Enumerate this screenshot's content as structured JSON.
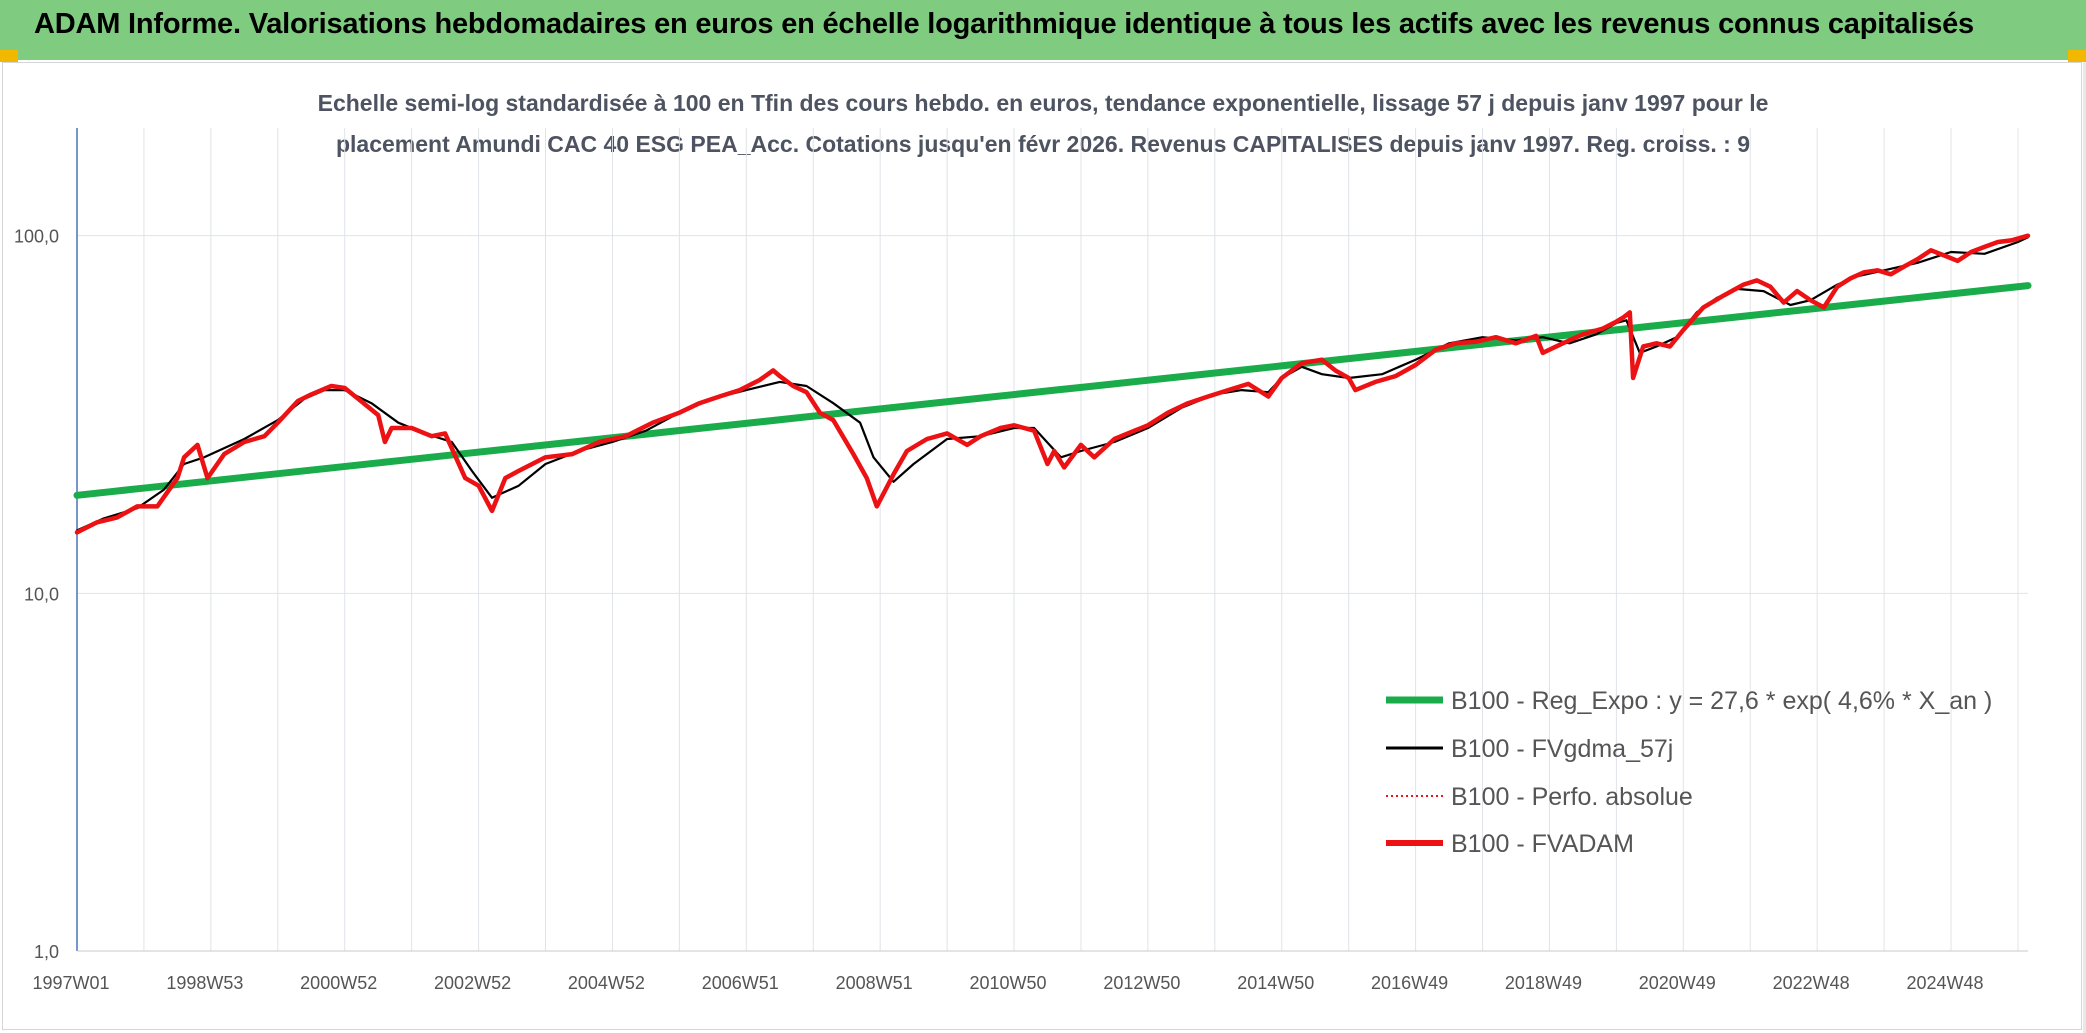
{
  "banner": {
    "title": "ADAM Informe. Valorisations hebdomadaires en euros en échelle logarithmique identique à tous les actifs avec les revenus connus capitalisés"
  },
  "colors": {
    "banner": "#7fcb7f",
    "regression": "#1aab4a",
    "smoothed": "#000000",
    "perf": "#e8141c",
    "fvadam": "#ee1111"
  },
  "chart_data": {
    "type": "line",
    "title_lines": [
      "Echelle semi-log standardisée à 100 en Tfin des cours hebdo. en euros, tendance exponentielle, lissage 57 j depuis janv 1997 pour le",
      "placement Amundi CAC 40 ESG PEA_Acc. Cotations jusqu'en févr 2026. Revenus CAPITALISES depuis janv 1997. Reg. croiss. : 9"
    ],
    "y_scale": "log",
    "ylim": [
      1,
      200
    ],
    "y_ticks": [
      {
        "value": 100,
        "label": "100,0"
      },
      {
        "value": 10,
        "label": "10,0"
      },
      {
        "value": 1,
        "label": "1,0"
      }
    ],
    "x_range": [
      1997.0,
      2026.15
    ],
    "x_ticks": [
      {
        "x": 1997.0,
        "label": "1997W01"
      },
      {
        "x": 1999.0,
        "label": "1998W53"
      },
      {
        "x": 2001.0,
        "label": "2000W52"
      },
      {
        "x": 2003.0,
        "label": "2002W52"
      },
      {
        "x": 2005.0,
        "label": "2004W52"
      },
      {
        "x": 2007.0,
        "label": "2006W51"
      },
      {
        "x": 2009.0,
        "label": "2008W51"
      },
      {
        "x": 2011.0,
        "label": "2010W50"
      },
      {
        "x": 2013.0,
        "label": "2012W50"
      },
      {
        "x": 2015.0,
        "label": "2014W50"
      },
      {
        "x": 2017.0,
        "label": "2016W49"
      },
      {
        "x": 2019.0,
        "label": "2018W49"
      },
      {
        "x": 2021.0,
        "label": "2020W49"
      },
      {
        "x": 2023.0,
        "label": "2022W48"
      },
      {
        "x": 2025.0,
        "label": "2024W48"
      }
    ],
    "gridlines": "vertical at each year, horizontal at each decade",
    "legend_position": "bottom-right inside plot",
    "series": [
      {
        "name": "B100 - Reg_Expo : y = 27,6 * exp( 4,6% *  X_an )",
        "style": "thick green line",
        "x": [
          1997.0,
          2026.15
        ],
        "y": [
          18.8,
          72.5
        ]
      },
      {
        "name": "B100 - FVgdma_57j",
        "style": "thin black line",
        "x": [
          1997.0,
          1997.4,
          1997.9,
          1998.3,
          1998.6,
          1998.9,
          1999.5,
          2000.0,
          2000.4,
          2000.7,
          2001.0,
          2001.4,
          2001.8,
          2002.2,
          2002.6,
          2002.9,
          2003.2,
          2003.6,
          2004.0,
          2004.5,
          2005.0,
          2005.5,
          2006.0,
          2006.5,
          2007.0,
          2007.5,
          2007.9,
          2008.3,
          2008.7,
          2008.9,
          2009.2,
          2009.5,
          2010.0,
          2010.5,
          2011.0,
          2011.3,
          2011.7,
          2012.0,
          2012.5,
          2013.0,
          2013.5,
          2014.0,
          2014.4,
          2014.8,
          2015.0,
          2015.3,
          2015.6,
          2016.0,
          2016.5,
          2017.0,
          2017.5,
          2018.0,
          2018.5,
          2018.9,
          2019.3,
          2019.7,
          2020.0,
          2020.15,
          2020.35,
          2020.6,
          2020.9,
          2021.2,
          2021.5,
          2021.8,
          2022.2,
          2022.6,
          2022.9,
          2023.3,
          2023.6,
          2024.0,
          2024.5,
          2025.0,
          2025.5,
          2026.0,
          2026.15
        ],
        "y": [
          15.0,
          16.2,
          17.3,
          19.5,
          23.0,
          24.0,
          27.0,
          30.5,
          35.0,
          37.0,
          37.0,
          34.0,
          30.0,
          28.0,
          26.5,
          22.0,
          18.5,
          20.0,
          23.0,
          25.0,
          26.5,
          28.5,
          32.0,
          35.0,
          37.0,
          39.0,
          38.0,
          34.0,
          30.0,
          24.0,
          20.5,
          23.0,
          27.0,
          27.5,
          29.0,
          29.0,
          24.0,
          25.0,
          26.5,
          29.0,
          33.0,
          36.0,
          37.0,
          36.5,
          40.0,
          43.0,
          41.0,
          40.0,
          41.0,
          45.0,
          50.0,
          52.0,
          51.0,
          52.0,
          50.0,
          53.0,
          57.0,
          58.0,
          47.0,
          49.0,
          52.0,
          61.0,
          67.0,
          71.0,
          70.0,
          64.0,
          66.0,
          73.0,
          77.0,
          80.0,
          84.0,
          90.0,
          89.0,
          96.0,
          99.0
        ]
      },
      {
        "name": "B100 - Perfo. absolue",
        "style": "dotted red line",
        "x": [
          1997.0,
          1997.3,
          1997.6,
          1997.9,
          1998.2,
          1998.5,
          1998.6,
          1998.8,
          1998.95,
          1999.2,
          1999.5,
          1999.8,
          2000.0,
          2000.3,
          2000.5,
          2000.8,
          2001.0,
          2001.2,
          2001.5,
          2001.6,
          2001.7,
          2002.0,
          2002.3,
          2002.5,
          2002.8,
          2003.0,
          2003.2,
          2003.4,
          2003.6,
          2004.0,
          2004.4,
          2004.8,
          2005.2,
          2005.6,
          2006.0,
          2006.3,
          2006.6,
          2006.9,
          2007.2,
          2007.4,
          2007.5,
          2007.7,
          2007.9,
          2008.1,
          2008.3,
          2008.6,
          2008.8,
          2008.95,
          2009.2,
          2009.4,
          2009.7,
          2010.0,
          2010.3,
          2010.5,
          2010.8,
          2011.0,
          2011.3,
          2011.5,
          2011.6,
          2011.75,
          2012.0,
          2012.2,
          2012.5,
          2012.8,
          2013.0,
          2013.3,
          2013.6,
          2013.9,
          2014.2,
          2014.5,
          2014.8,
          2015.0,
          2015.3,
          2015.6,
          2015.8,
          2016.0,
          2016.1,
          2016.4,
          2016.7,
          2017.0,
          2017.3,
          2017.6,
          2017.9,
          2018.2,
          2018.5,
          2018.8,
          2018.9,
          2019.2,
          2019.5,
          2019.8,
          2020.0,
          2020.1,
          2020.2,
          2020.25,
          2020.4,
          2020.6,
          2020.8,
          2021.0,
          2021.3,
          2021.6,
          2021.9,
          2022.1,
          2022.3,
          2022.5,
          2022.7,
          2022.9,
          2023.1,
          2023.3,
          2023.5,
          2023.7,
          2023.9,
          2024.1,
          2024.3,
          2024.5,
          2024.7,
          2024.9,
          2025.1,
          2025.3,
          2025.5,
          2025.7,
          2025.9,
          2026.15
        ],
        "y": [
          14.8,
          15.8,
          16.3,
          17.5,
          17.5,
          21.0,
          24.0,
          26.0,
          21.0,
          24.5,
          26.5,
          27.5,
          30.0,
          34.5,
          36.0,
          38.0,
          37.5,
          35.0,
          31.5,
          26.5,
          29.0,
          29.0,
          27.5,
          28.0,
          21.0,
          20.0,
          17.0,
          21.0,
          22.0,
          24.0,
          24.5,
          26.5,
          27.5,
          30.0,
          32.0,
          34.0,
          35.5,
          37.0,
          39.5,
          42.0,
          40.5,
          38.0,
          36.5,
          32.0,
          30.5,
          24.5,
          21.0,
          17.5,
          21.5,
          25.0,
          27.0,
          28.0,
          26.0,
          27.5,
          29.0,
          29.5,
          28.5,
          23.0,
          25.0,
          22.5,
          26.0,
          24.0,
          27.0,
          28.5,
          29.5,
          32.0,
          34.0,
          35.5,
          37.0,
          38.5,
          35.5,
          40.0,
          44.0,
          45.0,
          42.0,
          40.0,
          37.0,
          39.0,
          40.5,
          43.5,
          48.0,
          50.0,
          50.5,
          52.0,
          50.0,
          52.5,
          47.0,
          50.0,
          53.0,
          55.0,
          57.5,
          59.0,
          61.0,
          40.0,
          49.0,
          50.0,
          49.0,
          54.5,
          63.0,
          68.0,
          73.0,
          75.0,
          72.0,
          65.0,
          70.0,
          66.0,
          63.0,
          72.0,
          76.0,
          79.0,
          80.0,
          78.0,
          82.0,
          86.0,
          91.0,
          88.0,
          85.0,
          90.0,
          93.0,
          96.0,
          97.0,
          100.0
        ]
      },
      {
        "name": "B100 - FVADAM",
        "style": "thick red line",
        "x": [
          1997.0,
          1997.3,
          1997.6,
          1997.9,
          1998.2,
          1998.5,
          1998.6,
          1998.8,
          1998.95,
          1999.2,
          1999.5,
          1999.8,
          2000.0,
          2000.3,
          2000.5,
          2000.8,
          2001.0,
          2001.2,
          2001.5,
          2001.6,
          2001.7,
          2002.0,
          2002.3,
          2002.5,
          2002.8,
          2003.0,
          2003.2,
          2003.4,
          2003.6,
          2004.0,
          2004.4,
          2004.8,
          2005.2,
          2005.6,
          2006.0,
          2006.3,
          2006.6,
          2006.9,
          2007.2,
          2007.4,
          2007.5,
          2007.7,
          2007.9,
          2008.1,
          2008.3,
          2008.6,
          2008.8,
          2008.95,
          2009.2,
          2009.4,
          2009.7,
          2010.0,
          2010.3,
          2010.5,
          2010.8,
          2011.0,
          2011.3,
          2011.5,
          2011.6,
          2011.75,
          2012.0,
          2012.2,
          2012.5,
          2012.8,
          2013.0,
          2013.3,
          2013.6,
          2013.9,
          2014.2,
          2014.5,
          2014.8,
          2015.0,
          2015.3,
          2015.6,
          2015.8,
          2016.0,
          2016.1,
          2016.4,
          2016.7,
          2017.0,
          2017.3,
          2017.6,
          2017.9,
          2018.2,
          2018.5,
          2018.8,
          2018.9,
          2019.2,
          2019.5,
          2019.8,
          2020.0,
          2020.1,
          2020.2,
          2020.25,
          2020.4,
          2020.6,
          2020.8,
          2021.0,
          2021.3,
          2021.6,
          2021.9,
          2022.1,
          2022.3,
          2022.5,
          2022.7,
          2022.9,
          2023.1,
          2023.3,
          2023.5,
          2023.7,
          2023.9,
          2024.1,
          2024.3,
          2024.5,
          2024.7,
          2024.9,
          2025.1,
          2025.3,
          2025.5,
          2025.7,
          2025.9,
          2026.15
        ],
        "y": [
          14.8,
          15.8,
          16.3,
          17.5,
          17.5,
          21.0,
          24.0,
          26.0,
          21.0,
          24.5,
          26.5,
          27.5,
          30.0,
          34.5,
          36.0,
          38.0,
          37.5,
          35.0,
          31.5,
          26.5,
          29.0,
          29.0,
          27.5,
          28.0,
          21.0,
          20.0,
          17.0,
          21.0,
          22.0,
          24.0,
          24.5,
          26.5,
          27.5,
          30.0,
          32.0,
          34.0,
          35.5,
          37.0,
          39.5,
          42.0,
          40.5,
          38.0,
          36.5,
          32.0,
          30.5,
          24.5,
          21.0,
          17.5,
          21.5,
          25.0,
          27.0,
          28.0,
          26.0,
          27.5,
          29.0,
          29.5,
          28.5,
          23.0,
          25.0,
          22.5,
          26.0,
          24.0,
          27.0,
          28.5,
          29.5,
          32.0,
          34.0,
          35.5,
          37.0,
          38.5,
          35.5,
          40.0,
          44.0,
          45.0,
          42.0,
          40.0,
          37.0,
          39.0,
          40.5,
          43.5,
          48.0,
          50.0,
          50.5,
          52.0,
          50.0,
          52.5,
          47.0,
          50.0,
          53.0,
          55.0,
          57.5,
          59.0,
          61.0,
          40.0,
          49.0,
          50.0,
          49.0,
          54.5,
          63.0,
          68.0,
          73.0,
          75.0,
          72.0,
          65.0,
          70.0,
          66.0,
          63.0,
          72.0,
          76.0,
          79.0,
          80.0,
          78.0,
          82.0,
          86.0,
          91.0,
          88.0,
          85.0,
          90.0,
          93.0,
          96.0,
          97.0,
          100.0
        ]
      }
    ]
  }
}
